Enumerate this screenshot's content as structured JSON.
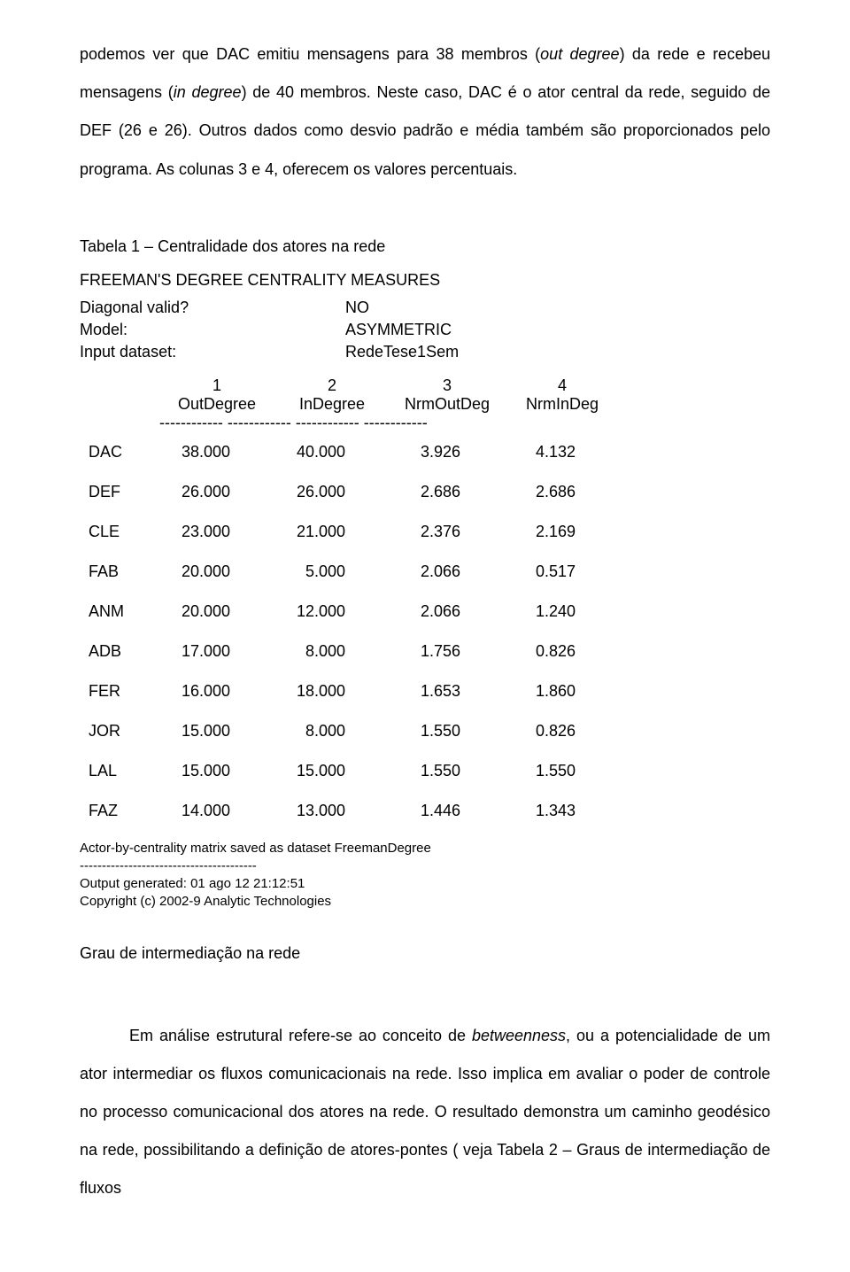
{
  "para1_a": "podemos ver que DAC emitiu mensagens para 38 membros (",
  "para1_out": "out degree",
  "para1_b": ") da rede e recebeu mensagens (",
  "para1_in": "in degree",
  "para1_c": ") de 40 membros. Neste caso, DAC é o ator central da rede, seguido de DEF (26 e 26). Outros dados como desvio padrão e média também são proporcionados pelo programa. As colunas 3 e 4, oferecem os valores percentuais.",
  "table1_title": "Tabela 1 – Centralidade dos atores na rede",
  "measures_title": "FREEMAN'S DEGREE CENTRALITY MEASURES",
  "kv": [
    {
      "k": "Diagonal valid?",
      "v": "NO"
    },
    {
      "k": "Model:",
      "v": "ASYMMETRIC"
    },
    {
      "k": "Input dataset:",
      "v": "RedeTese1Sem"
    }
  ],
  "hdr_nums": [
    "1",
    "2",
    "3",
    "4"
  ],
  "hdr_labels": [
    "OutDegree",
    "InDegree",
    "NrmOutDeg",
    "NrmInDeg"
  ],
  "dashes": "------------ ------------ ------------ ------------",
  "rows": [
    {
      "label": "DAC",
      "c": [
        "38.000",
        "40.000",
        "3.926",
        "4.132"
      ]
    },
    {
      "label": "DEF",
      "c": [
        "26.000",
        "26.000",
        "2.686",
        "2.686"
      ]
    },
    {
      "label": "CLE",
      "c": [
        "23.000",
        "21.000",
        "2.376",
        "2.169"
      ]
    },
    {
      "label": "FAB",
      "c": [
        "20.000",
        "5.000",
        "2.066",
        "0.517"
      ]
    },
    {
      "label": "ANM",
      "c": [
        "20.000",
        "12.000",
        "2.066",
        "1.240"
      ]
    },
    {
      "label": "ADB",
      "c": [
        "17.000",
        "8.000",
        "1.756",
        "0.826"
      ]
    },
    {
      "label": "FER",
      "c": [
        "16.000",
        "18.000",
        "1.653",
        "1.860"
      ]
    },
    {
      "label": "JOR",
      "c": [
        "15.000",
        "8.000",
        "1.550",
        "0.826"
      ]
    },
    {
      "label": "LAL",
      "c": [
        "15.000",
        "15.000",
        "1.550",
        "1.550"
      ]
    },
    {
      "label": "FAZ",
      "c": [
        "14.000",
        "13.000",
        "1.446",
        "1.343"
      ]
    }
  ],
  "footer1": "Actor-by-centrality matrix saved as dataset FreemanDegree",
  "footer_dashes": "----------------------------------------",
  "footer2": "Output generated: 01 ago 12 21:12:51",
  "footer3": "Copyright (c) 2002-9 Analytic Technologies",
  "section2": "Grau de intermediação na rede",
  "para2_a": "Em análise estrutural refere-se ao conceito de ",
  "para2_it": "betweenness",
  "para2_b": ", ou a potencialidade de um ator intermediar os fluxos comunicacionais na rede. Isso implica em avaliar o poder de controle no processo comunicacional dos atores na rede. O resultado demonstra um caminho geodésico na rede, possibilitando a definição de atores-pontes ( veja Tabela 2 – Graus de intermediação de fluxos"
}
